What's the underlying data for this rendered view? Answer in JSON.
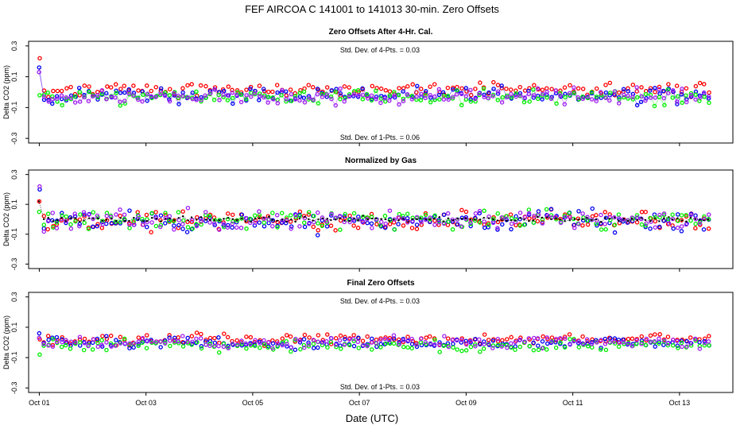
{
  "figure": {
    "title": "FEF   AIRCOA C   141001 to 141013   30-min. Zero Offsets",
    "xlabel": "Date (UTC)",
    "xticks": [
      "Oct 01",
      "Oct 03",
      "Oct 05",
      "Oct 07",
      "Oct 09",
      "Oct 11",
      "Oct 13"
    ]
  },
  "colors": {
    "red": "#ff0000",
    "blue": "#0000ee",
    "green": "#00ee00",
    "purple": "#a020f0",
    "black": "#000000"
  },
  "chart_data": [
    {
      "type": "scatter",
      "title": "Zero Offsets After 4-Hr. Cal.",
      "ylabel": "Delta CO2 (ppm)",
      "ylim": [
        -0.33,
        0.33
      ],
      "yticks": [
        "0.3",
        "0.1",
        "-0.1",
        "-0.3"
      ],
      "xlim": [
        -0.2,
        13.0
      ],
      "annotation_top": "Std. Dev. of 4-Pts. =  0.03",
      "annotation_bottom": "Std. Dev. of 1-Pts. =  0.06",
      "series": [
        {
          "name": "red",
          "color": "#ff0000",
          "mean": 0.02,
          "sd": 0.03,
          "lines": false,
          "seed": 11
        },
        {
          "name": "blue",
          "color": "#0000ee",
          "mean": -0.02,
          "sd": 0.035,
          "lines": true,
          "seed": 12
        },
        {
          "name": "green",
          "color": "#00ee00",
          "mean": -0.03,
          "sd": 0.035,
          "lines": true,
          "seed": 13
        },
        {
          "name": "purple",
          "color": "#a020f0",
          "mean": -0.03,
          "sd": 0.035,
          "lines": true,
          "seed": 14
        }
      ],
      "start_values": [
        0.22,
        0.16,
        -0.02,
        0.13
      ]
    },
    {
      "type": "scatter",
      "title": "Normalized by Gas",
      "ylabel": "Delta CO2 (ppm)",
      "ylim": [
        -0.33,
        0.33
      ],
      "yticks": [
        "0.3",
        "0.1",
        "-0.1",
        "-0.3"
      ],
      "xlim": [
        -0.2,
        13.0
      ],
      "series": [
        {
          "name": "red",
          "color": "#ff0000",
          "mean": -0.01,
          "sd": 0.045,
          "lines": false,
          "seed": 21
        },
        {
          "name": "blue",
          "color": "#0000ee",
          "mean": -0.01,
          "sd": 0.05,
          "lines": false,
          "seed": 22
        },
        {
          "name": "green",
          "color": "#00ee00",
          "mean": 0.0,
          "sd": 0.045,
          "lines": false,
          "seed": 23
        },
        {
          "name": "purple",
          "color": "#a020f0",
          "mean": -0.01,
          "sd": 0.045,
          "lines": false,
          "seed": 24
        },
        {
          "name": "mean",
          "color": "#000000",
          "mean": 0.0,
          "sd": 0.012,
          "lines": true,
          "dotted": true,
          "seed": 25
        }
      ],
      "start_values": [
        0.12,
        0.2,
        0.05,
        0.22,
        0.12
      ]
    },
    {
      "type": "scatter",
      "title": "Final Zero Offsets",
      "ylabel": "Delta CO2 (ppm)",
      "ylim": [
        -0.33,
        0.33
      ],
      "yticks": [
        "0.3",
        "0.1",
        "-0.1",
        "-0.3"
      ],
      "xlim": [
        -0.2,
        13.0
      ],
      "annotation_top": "Std. Dev. of 4-Pts. =  0.03",
      "annotation_bottom": "Std. Dev. of 1-Pts. =  0.03",
      "series": [
        {
          "name": "red",
          "color": "#ff0000",
          "mean": 0.02,
          "sd": 0.025,
          "lines": false,
          "seed": 31
        },
        {
          "name": "blue",
          "color": "#0000ee",
          "mean": 0.0,
          "sd": 0.025,
          "lines": false,
          "seed": 32
        },
        {
          "name": "green",
          "color": "#00ee00",
          "mean": -0.02,
          "sd": 0.025,
          "lines": false,
          "seed": 33
        },
        {
          "name": "purple",
          "color": "#a020f0",
          "mean": 0.0,
          "sd": 0.025,
          "lines": false,
          "seed": 34
        }
      ],
      "start_values": [
        0.02,
        0.06,
        -0.08,
        0.03
      ]
    }
  ]
}
